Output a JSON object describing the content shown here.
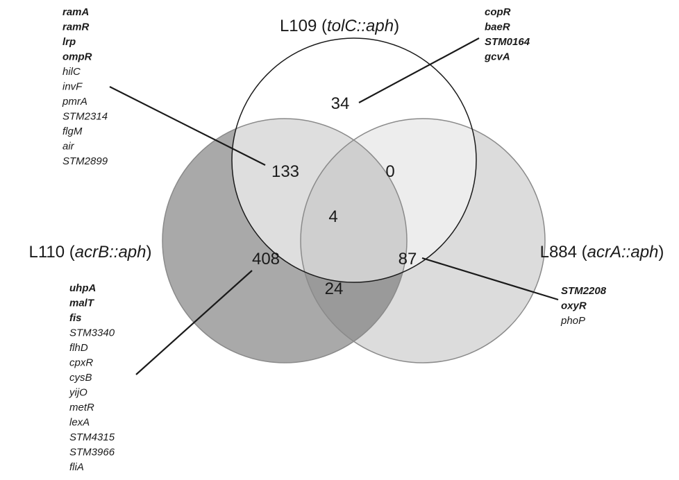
{
  "sets": {
    "L109": {
      "name": "L109",
      "gene": "tolC::aph"
    },
    "L110": {
      "name": "L110",
      "gene": "acrB::aph"
    },
    "L884": {
      "name": "L884",
      "gene": "acrA::aph"
    }
  },
  "regions": {
    "L109_only": "34",
    "L109_L110": "133",
    "L109_L884": "0",
    "all_three": "4",
    "L110_only": "408",
    "L110_L884": "24",
    "L884_only": "87"
  },
  "gene_lists": {
    "L109_L110": [
      {
        "text": "ramA",
        "bold": true
      },
      {
        "text": "ramR",
        "bold": true
      },
      {
        "text": "lrp",
        "bold": true
      },
      {
        "text": "ompR",
        "bold": true
      },
      {
        "text": "hilC",
        "bold": false
      },
      {
        "text": "invF",
        "bold": false
      },
      {
        "text": "pmrA",
        "bold": false
      },
      {
        "text": "STM2314",
        "bold": false
      },
      {
        "text": "flgM",
        "bold": false
      },
      {
        "text": "air",
        "bold": false
      },
      {
        "text": "STM2899",
        "bold": false
      }
    ],
    "L109_only": [
      {
        "text": "copR",
        "bold": true
      },
      {
        "text": "baeR",
        "bold": true
      },
      {
        "text": "STM0164",
        "bold": true
      },
      {
        "text": "gcvA",
        "bold": true
      }
    ],
    "L110_only": [
      {
        "text": "uhpA",
        "bold": true
      },
      {
        "text": "malT",
        "bold": true
      },
      {
        "text": "fis",
        "bold": true
      },
      {
        "text": "STM3340",
        "bold": false
      },
      {
        "text": "flhD",
        "bold": false
      },
      {
        "text": "cpxR",
        "bold": false
      },
      {
        "text": "cysB",
        "bold": false
      },
      {
        "text": "yijO",
        "bold": false
      },
      {
        "text": "metR",
        "bold": false
      },
      {
        "text": "lexA",
        "bold": false
      },
      {
        "text": "STM4315",
        "bold": false
      },
      {
        "text": "STM3966",
        "bold": false
      },
      {
        "text": "fliA",
        "bold": false
      }
    ],
    "L884_only": [
      {
        "text": "STM2208",
        "bold": true
      },
      {
        "text": "oxyR",
        "bold": true
      },
      {
        "text": "phoP",
        "bold": false
      }
    ]
  },
  "colors": {
    "L109_fill": "#ffffff",
    "L110_fill": "#a9a9a9",
    "L884_fill": "#dcdcdc",
    "L109_L110_fill": "#dedede",
    "L109_L884_fill": "#ededed",
    "all_three_fill": "#cfcfcf",
    "L110_L884_fill": "#9a9a9a",
    "stroke": "#1a1a1a"
  }
}
